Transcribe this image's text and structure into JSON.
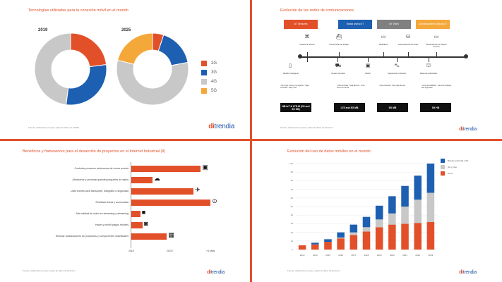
{
  "colors": {
    "accent": "#e2502a",
    "blue": "#1d5fb0",
    "grey": "#c8c8c8",
    "yellow": "#f5a83a",
    "black": "#111111"
  },
  "brand": {
    "di": "di",
    "trendia": "trendia"
  },
  "panel1": {
    "title": "Tecnologías utilizadas para la conexión móvil en el mundo",
    "source": "Fuente: elaboración propia a partir de datos de GSMA",
    "chart_data": {
      "type": "pie",
      "charts": [
        {
          "year": "2019",
          "slices": [
            {
              "label": "2G",
              "value": 23
            },
            {
              "label": "3G",
              "value": 29
            },
            {
              "label": "4G",
              "value": 48
            },
            {
              "label": "5G",
              "value": 0
            }
          ]
        },
        {
          "year": "2025",
          "slices": [
            {
              "label": "2G",
              "value": 5
            },
            {
              "label": "3G",
              "value": 17
            },
            {
              "label": "4G",
              "value": 57
            },
            {
              "label": "5G",
              "value": 21
            }
          ]
        }
      ],
      "legend": [
        "2G",
        "3G",
        "4G",
        "5G"
      ],
      "legend_position": "right"
    }
  },
  "panel2": {
    "title": "Evolución de las redes de comunicaciones",
    "tags": [
      {
        "label": "IoT Sensores",
        "color": "#e2502a"
      },
      {
        "label": "Banda ancha IoT",
        "color": "#1d5fb0"
      },
      {
        "label": "IoT Vídeo",
        "color": "#808080"
      },
      {
        "label": "Comunicaciones críticas IoT",
        "color": "#f5a83a"
      }
    ],
    "top_items": [
      "Gestión de activos",
      "Control flotas de trabajo",
      "Wearables",
      "Automatización de redes",
      "Monitorización de objetos remotos"
    ],
    "top_icons": [
      "⌘",
      "⛴",
      "▭",
      "⛁",
      "▭"
    ],
    "bottom_items": [
      "Medidor inteligente",
      "Gestión de flotas",
      "HD/4K",
      "Seguimiento industrial",
      "Sistemas industriales"
    ],
    "bottom_icons": [
      "▯",
      "⛟",
      "▣",
      "⛍",
      "⛫"
    ],
    "bullets": [
      "• Muy bajo consumo energético · Baja velocidad · Bajo coste",
      "• Alta velocidad · Baja latencia · Gran ancho de banda",
      "• Alta velocidad · Muy baja latencia",
      "• Muy alta fiabilidad · Latencia ultrabaja · Alta seguridad"
    ],
    "blocks": [
      "NB-IoT & LTE-M (2G and 3G HB)",
      "LTE and 5G MB",
      "5G MB",
      "5G HB"
    ],
    "source": "Fuente: elaboración propia a partir de datos de Ericsson"
  },
  "panel3": {
    "title": "Beneficios y frameworks para el desarrollo de proyectos en el Internet Industrial (II)",
    "bars": [
      {
        "label": "Controlar procesos autónomos de forma remota",
        "value": 2.9,
        "icon": "▣"
      },
      {
        "label": "Almacenar y procesar grandes paquetes de datos",
        "value": 0.9,
        "icon": "☁"
      },
      {
        "label": "Usar drones para transporte, fotografía o seguridad",
        "value": 2.6,
        "icon": "✈"
      },
      {
        "label": "Realidad virtual y aumentada",
        "value": 3.3,
        "icon": "⊙"
      },
      {
        "label": "Alta calidad de video en streaming y streaming",
        "value": 0.4,
        "icon": "■"
      },
      {
        "label": "Hacer y recibir pagos móviles",
        "value": 0.5,
        "icon": "◙"
      },
      {
        "label": "Eliminar localizaciones de productos y componentes individuales",
        "value": 1.5,
        "icon": "▦"
      }
    ],
    "xticks": [
      "2018",
      "2021?",
      "+3 años"
    ],
    "source": "Fuente: elaboración propia a partir de datos de Ericsson",
    "chart_data": {
      "type": "bar",
      "orientation": "horizontal",
      "xlim": [
        0,
        3.5
      ]
    }
  },
  "panel4": {
    "title": "Evolución del uso de datos móviles en el mundo",
    "source": "Fuente: elaboración propia a partir de datos de Ericsson",
    "chart_data": {
      "type": "bar",
      "stacked": true,
      "categories": [
        "2013",
        "2014",
        "2015",
        "2016",
        "2017",
        "2018",
        "2019",
        "2020",
        "2021",
        "2022",
        "2023"
      ],
      "series": [
        {
          "name": "Otros",
          "color": "#e2502a",
          "values": [
            5,
            6,
            9,
            13,
            17,
            21,
            26,
            29,
            30,
            31,
            32
          ]
        },
        {
          "name": "4G y más",
          "color": "#c8c8c8",
          "values": [
            0,
            0,
            0,
            1,
            3,
            5,
            9,
            13,
            20,
            27,
            34
          ]
        },
        {
          "name": "Banda ancha fija y 5G",
          "color": "#1d5fb0",
          "values": [
            0,
            2,
            3,
            6,
            9,
            12,
            16,
            20,
            24,
            28,
            34
          ]
        }
      ],
      "yticks": [
        "0",
        "10",
        "20",
        "30",
        "40",
        "50",
        "60",
        "70",
        "80",
        "90",
        "100"
      ],
      "ylim": [
        0,
        100
      ],
      "legend_position": "top-right"
    }
  }
}
